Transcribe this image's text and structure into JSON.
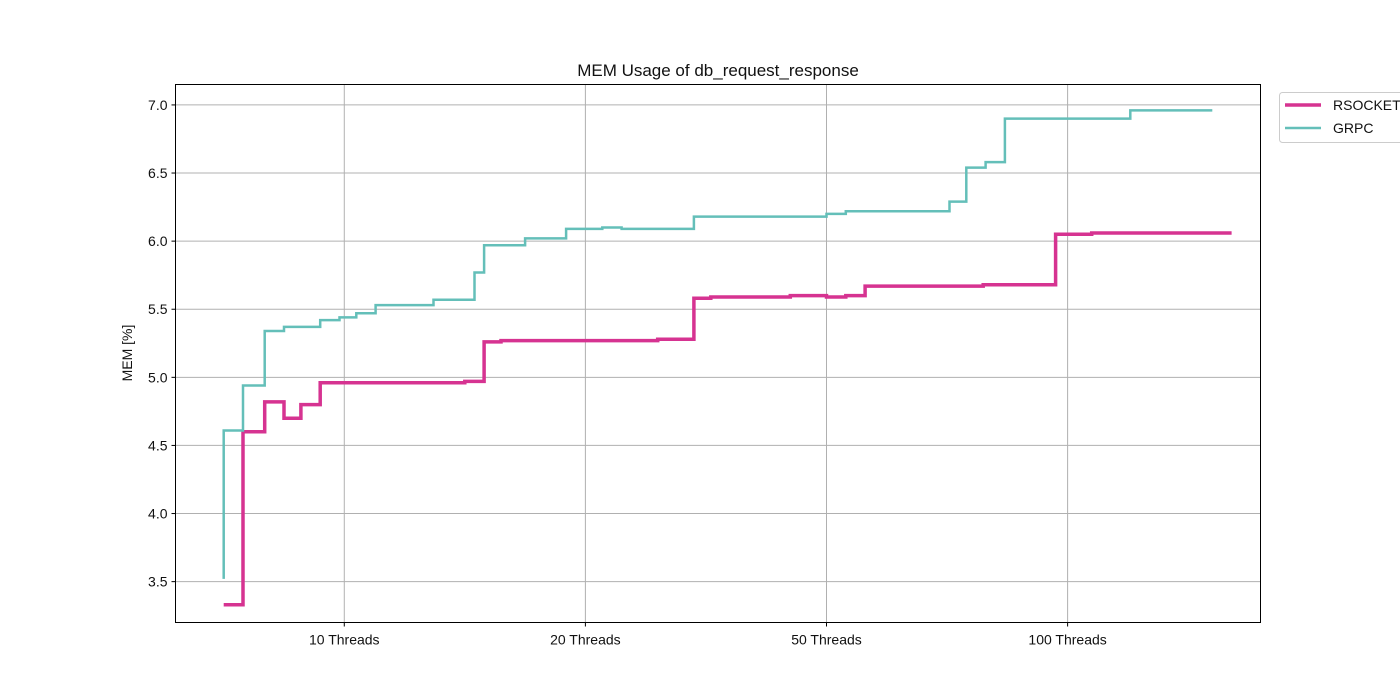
{
  "chart_data": {
    "type": "line",
    "title": "MEM Usage of db_request_response",
    "xlabel": "",
    "ylabel": "MEM [%]",
    "x_ticks": [
      "10 Threads",
      "20 Threads",
      "50 Threads",
      "100 Threads"
    ],
    "x_tick_positions": [
      10,
      20,
      30,
      40
    ],
    "xlim": [
      3,
      48
    ],
    "ylim": [
      3.2,
      7.15
    ],
    "y_ticks": [
      "3.5",
      "4.0",
      "4.5",
      "5.0",
      "5.5",
      "6.0",
      "6.5",
      "7.0"
    ],
    "grid": true,
    "legend_position": "outside top-right",
    "series": [
      {
        "name": "RSOCKET",
        "color": "#d63391",
        "points": [
          [
            5.0,
            3.33
          ],
          [
            5.8,
            3.33
          ],
          [
            5.8,
            4.6
          ],
          [
            6.7,
            4.6
          ],
          [
            6.7,
            4.82
          ],
          [
            7.5,
            4.82
          ],
          [
            7.5,
            4.7
          ],
          [
            8.2,
            4.7
          ],
          [
            8.2,
            4.8
          ],
          [
            9.0,
            4.8
          ],
          [
            9.0,
            4.96
          ],
          [
            15.0,
            4.96
          ],
          [
            15.0,
            4.97
          ],
          [
            15.8,
            4.97
          ],
          [
            15.8,
            5.26
          ],
          [
            16.5,
            5.26
          ],
          [
            16.5,
            5.27
          ],
          [
            23.0,
            5.27
          ],
          [
            23.0,
            5.28
          ],
          [
            24.5,
            5.28
          ],
          [
            24.5,
            5.58
          ],
          [
            25.2,
            5.58
          ],
          [
            25.2,
            5.59
          ],
          [
            28.5,
            5.59
          ],
          [
            28.5,
            5.6
          ],
          [
            30.0,
            5.6
          ],
          [
            30.0,
            5.59
          ],
          [
            30.8,
            5.59
          ],
          [
            30.8,
            5.6
          ],
          [
            31.6,
            5.6
          ],
          [
            31.6,
            5.67
          ],
          [
            36.5,
            5.67
          ],
          [
            36.5,
            5.68
          ],
          [
            39.5,
            5.68
          ],
          [
            39.5,
            6.05
          ],
          [
            41.0,
            6.05
          ],
          [
            41.0,
            6.06
          ],
          [
            46.8,
            6.06
          ]
        ]
      },
      {
        "name": "GRPC",
        "color": "#64bfb9",
        "points": [
          [
            5.0,
            3.52
          ],
          [
            5.0,
            4.61
          ],
          [
            5.8,
            4.61
          ],
          [
            5.8,
            4.94
          ],
          [
            6.7,
            4.94
          ],
          [
            6.7,
            5.34
          ],
          [
            7.5,
            5.34
          ],
          [
            7.5,
            5.37
          ],
          [
            9.0,
            5.37
          ],
          [
            9.0,
            5.42
          ],
          [
            9.8,
            5.42
          ],
          [
            9.8,
            5.44
          ],
          [
            10.5,
            5.44
          ],
          [
            10.5,
            5.47
          ],
          [
            11.3,
            5.47
          ],
          [
            11.3,
            5.53
          ],
          [
            13.7,
            5.53
          ],
          [
            13.7,
            5.57
          ],
          [
            15.4,
            5.57
          ],
          [
            15.4,
            5.77
          ],
          [
            15.8,
            5.77
          ],
          [
            15.8,
            5.97
          ],
          [
            17.5,
            5.97
          ],
          [
            17.5,
            6.02
          ],
          [
            19.2,
            6.02
          ],
          [
            19.2,
            6.09
          ],
          [
            20.7,
            6.09
          ],
          [
            20.7,
            6.1
          ],
          [
            21.5,
            6.1
          ],
          [
            21.5,
            6.09
          ],
          [
            24.5,
            6.09
          ],
          [
            24.5,
            6.18
          ],
          [
            30.0,
            6.18
          ],
          [
            30.0,
            6.2
          ],
          [
            30.8,
            6.2
          ],
          [
            30.8,
            6.22
          ],
          [
            35.1,
            6.22
          ],
          [
            35.1,
            6.29
          ],
          [
            35.8,
            6.29
          ],
          [
            35.8,
            6.54
          ],
          [
            36.6,
            6.54
          ],
          [
            36.6,
            6.58
          ],
          [
            37.4,
            6.58
          ],
          [
            37.4,
            6.9
          ],
          [
            42.6,
            6.9
          ],
          [
            42.6,
            6.96
          ],
          [
            46.0,
            6.96
          ]
        ]
      }
    ]
  }
}
